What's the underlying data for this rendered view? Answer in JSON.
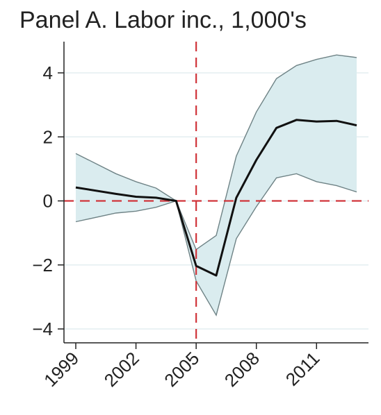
{
  "chart_data": {
    "type": "line",
    "title": "Panel A. Labor inc., 1,000's",
    "xlabel": "",
    "ylabel": "",
    "xlim": [
      1999,
      2013
    ],
    "ylim": [
      -4.3,
      4.9
    ],
    "xticks": [
      1999,
      2002,
      2005,
      2008,
      2011
    ],
    "xtick_labels": [
      "1999",
      "2002",
      "2005",
      "2008",
      "2011"
    ],
    "yticks": [
      -4,
      -2,
      0,
      2,
      4
    ],
    "ytick_labels": [
      "−4",
      "−2",
      "0",
      "2",
      "4"
    ],
    "grid": "horizontal",
    "x": [
      1999,
      2001,
      2002,
      2003,
      2004,
      2005,
      2006,
      2007,
      2008,
      2009,
      2010,
      2011,
      2012,
      2013
    ],
    "series": [
      {
        "values": [
          0.42,
          0.22,
          0.13,
          0.1,
          0.0,
          -2.03,
          -2.33,
          0.1,
          1.28,
          2.28,
          2.53,
          2.48,
          2.5,
          2.36
        ]
      }
    ],
    "confidence_band": {
      "lower": [
        -0.65,
        -0.38,
        -0.32,
        -0.2,
        0.0,
        -2.5,
        -3.57,
        -1.18,
        -0.18,
        0.72,
        0.85,
        0.6,
        0.48,
        0.28
      ],
      "upper": [
        1.48,
        0.85,
        0.6,
        0.4,
        0.0,
        -1.52,
        -1.08,
        1.4,
        2.78,
        3.82,
        4.23,
        4.42,
        4.56,
        4.48
      ]
    },
    "reference_lines": {
      "vertical_x": 2005,
      "horizontal_y": 0
    },
    "colors": {
      "line": "#111111",
      "band_fill": "#daecef",
      "band_edge": "#6f8386",
      "reference": "#d0343a",
      "grid": "#e3eef0",
      "axis": "#222222"
    }
  }
}
